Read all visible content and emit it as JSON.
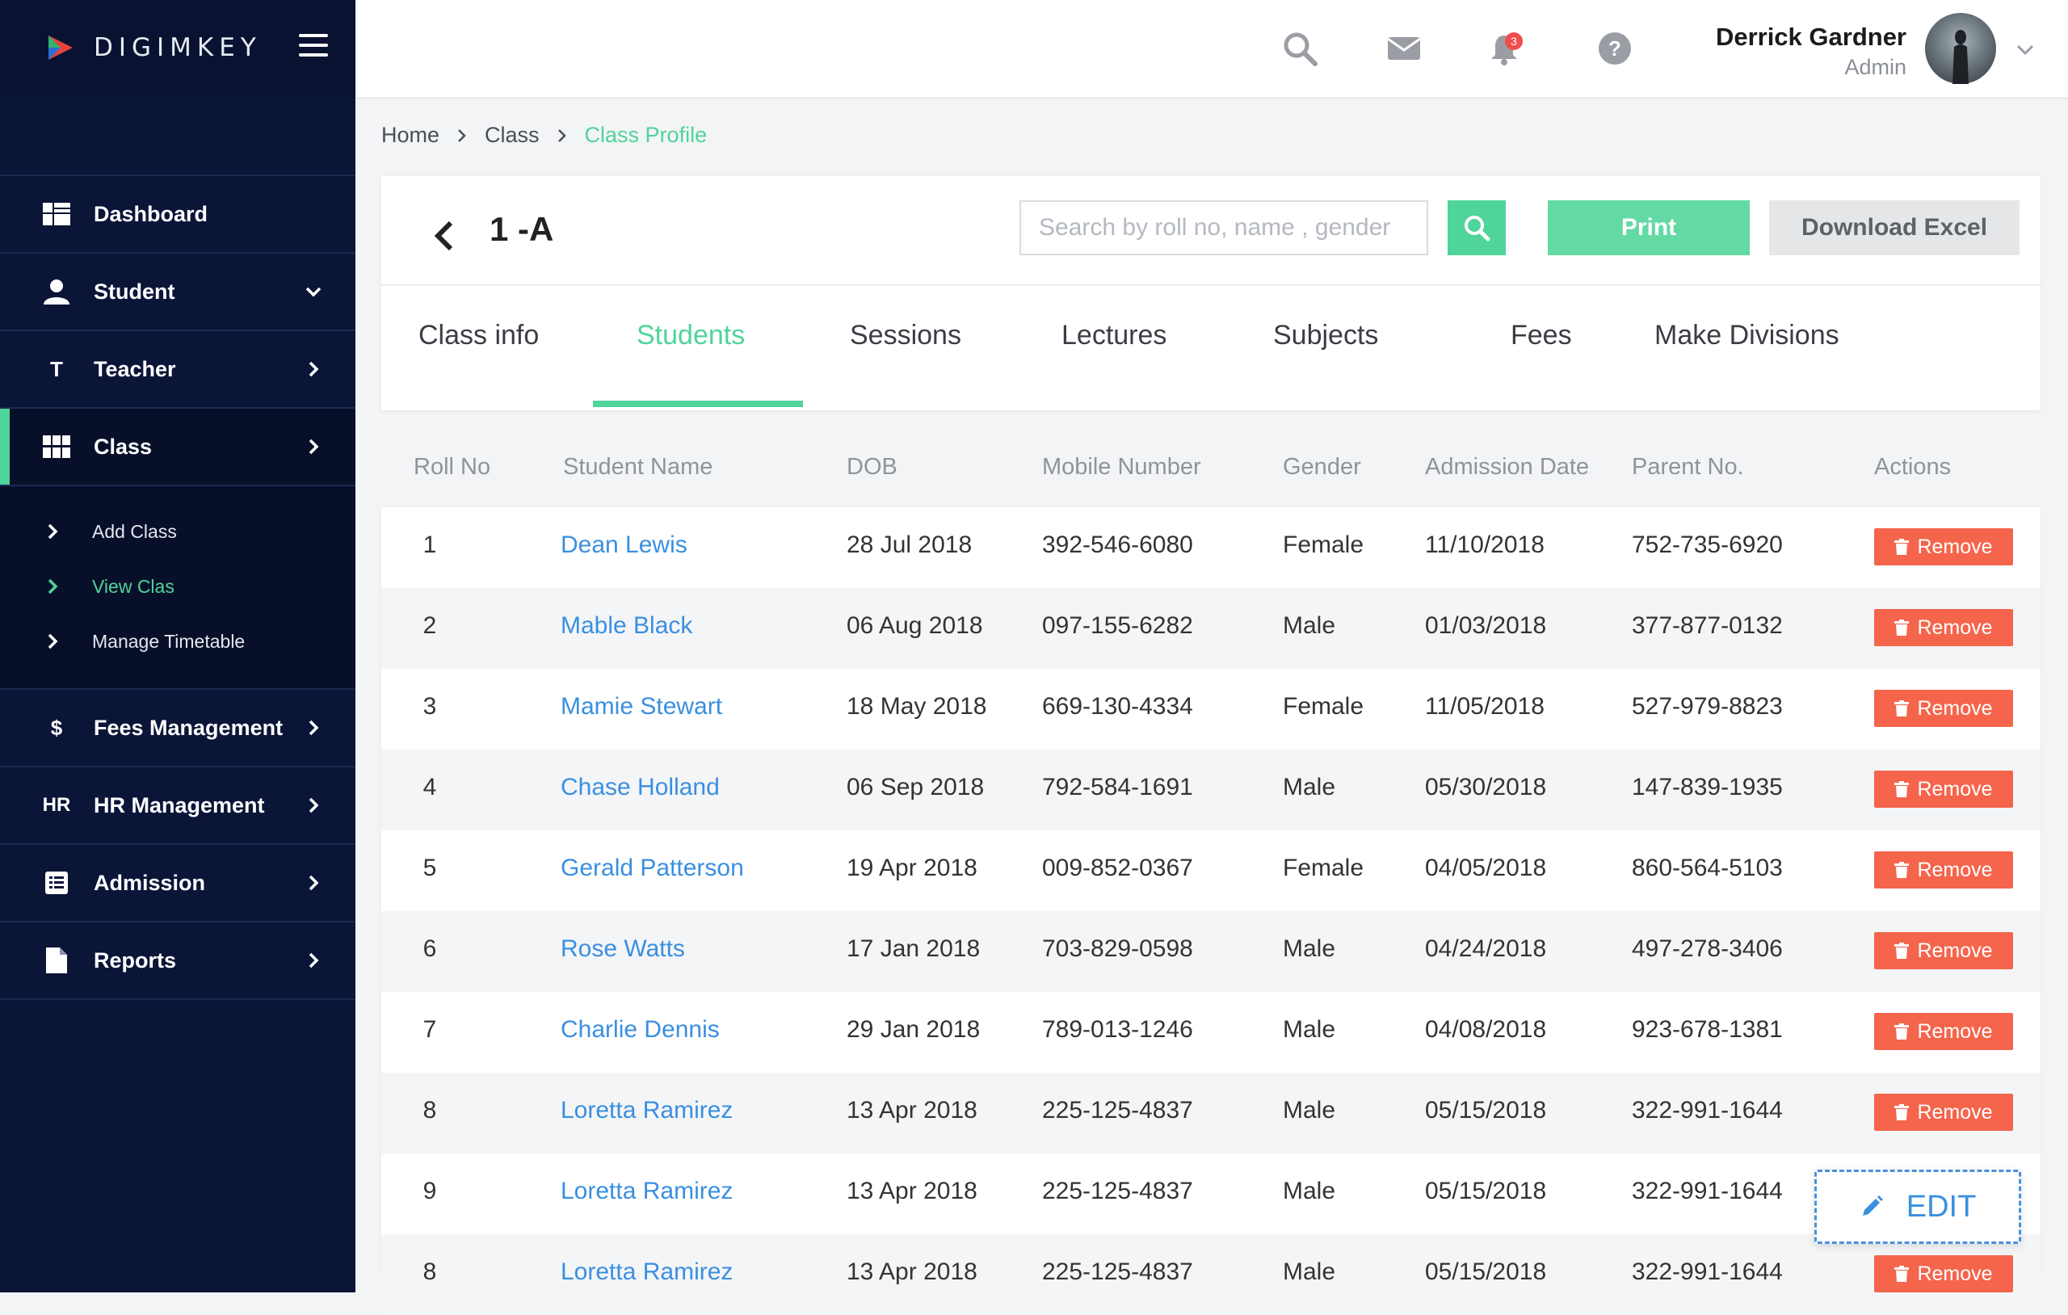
{
  "brand": {
    "name": "DIGIMKEY"
  },
  "sidebar": {
    "items": [
      {
        "label": "Dashboard",
        "icon": "dashboard-icon"
      },
      {
        "label": "Student",
        "icon": "user-icon"
      },
      {
        "label": "Teacher",
        "icon": "teacher-icon",
        "glyph": "T"
      },
      {
        "label": "Class",
        "icon": "grid-icon"
      }
    ],
    "sub_items": [
      {
        "label": "Add Class"
      },
      {
        "label": "View Clas"
      },
      {
        "label": "Manage Timetable"
      }
    ],
    "items_after": [
      {
        "label": "Fees Management",
        "icon": "dollar-icon",
        "glyph": "$"
      },
      {
        "label": "HR Management",
        "icon": "hr-icon",
        "glyph": "HR"
      },
      {
        "label": "Admission",
        "icon": "admission-icon"
      },
      {
        "label": "Reports",
        "icon": "reports-icon"
      }
    ]
  },
  "header": {
    "notification_count": "3",
    "user": {
      "name": "Derrick Gardner",
      "role": "Admin"
    }
  },
  "breadcrumb": {
    "home": "Home",
    "class": "Class",
    "current": "Class Profile"
  },
  "card": {
    "title": "1 -A",
    "search_placeholder": "Search by roll no, name , gender",
    "print_label": "Print",
    "excel_label": "Download Excel",
    "tabs": [
      "Class info",
      "Students",
      "Sessions",
      "Lectures",
      "Subjects",
      "Fees",
      "Make Divisions"
    ],
    "active_tab": "Students"
  },
  "table": {
    "headers": [
      "Roll No",
      "Student Name",
      "DOB",
      "Mobile Number",
      "Gender",
      "Admission Date",
      "Parent No.",
      "Actions"
    ],
    "remove_label": "Remove",
    "rows": [
      {
        "roll": "1",
        "name": "Dean Lewis",
        "dob": "28 Jul 2018",
        "mobile": "392-546-6080",
        "gender": "Female",
        "admission": "11/10/2018",
        "parent": "752-735-6920"
      },
      {
        "roll": "2",
        "name": "Mable Black",
        "dob": "06 Aug 2018",
        "mobile": "097-155-6282",
        "gender": "Male",
        "admission": "01/03/2018",
        "parent": "377-877-0132"
      },
      {
        "roll": "3",
        "name": "Mamie Stewart",
        "dob": "18 May 2018",
        "mobile": "669-130-4334",
        "gender": "Female",
        "admission": "11/05/2018",
        "parent": "527-979-8823"
      },
      {
        "roll": "4",
        "name": "Chase Holland",
        "dob": "06 Sep 2018",
        "mobile": "792-584-1691",
        "gender": "Male",
        "admission": "05/30/2018",
        "parent": "147-839-1935"
      },
      {
        "roll": "5",
        "name": "Gerald Patterson",
        "dob": "19 Apr 2018",
        "mobile": "009-852-0367",
        "gender": "Female",
        "admission": "04/05/2018",
        "parent": "860-564-5103"
      },
      {
        "roll": "6",
        "name": "Rose Watts",
        "dob": "17 Jan 2018",
        "mobile": "703-829-0598",
        "gender": "Male",
        "admission": "04/24/2018",
        "parent": "497-278-3406"
      },
      {
        "roll": "7",
        "name": "Charlie Dennis",
        "dob": "29 Jan 2018",
        "mobile": "789-013-1246",
        "gender": "Male",
        "admission": "04/08/2018",
        "parent": "923-678-1381"
      },
      {
        "roll": "8",
        "name": "Loretta Ramirez",
        "dob": "13 Apr 2018",
        "mobile": "225-125-4837",
        "gender": "Male",
        "admission": "05/15/2018",
        "parent": "322-991-1644"
      },
      {
        "roll": "9",
        "name": "Loretta Ramirez",
        "dob": "13 Apr 2018",
        "mobile": "225-125-4837",
        "gender": "Male",
        "admission": "05/15/2018",
        "parent": "322-991-1644"
      },
      {
        "roll": "8",
        "name": "Loretta Ramirez",
        "dob": "13 Apr 2018",
        "mobile": "225-125-4837",
        "gender": "Male",
        "admission": "05/15/2018",
        "parent": "322-991-1644"
      }
    ]
  },
  "edit_label": "EDIT",
  "colors": {
    "accent": "#4fd49a",
    "link": "#3a8fe0",
    "danger": "#f4654c",
    "sidebar": "#0b1538"
  }
}
